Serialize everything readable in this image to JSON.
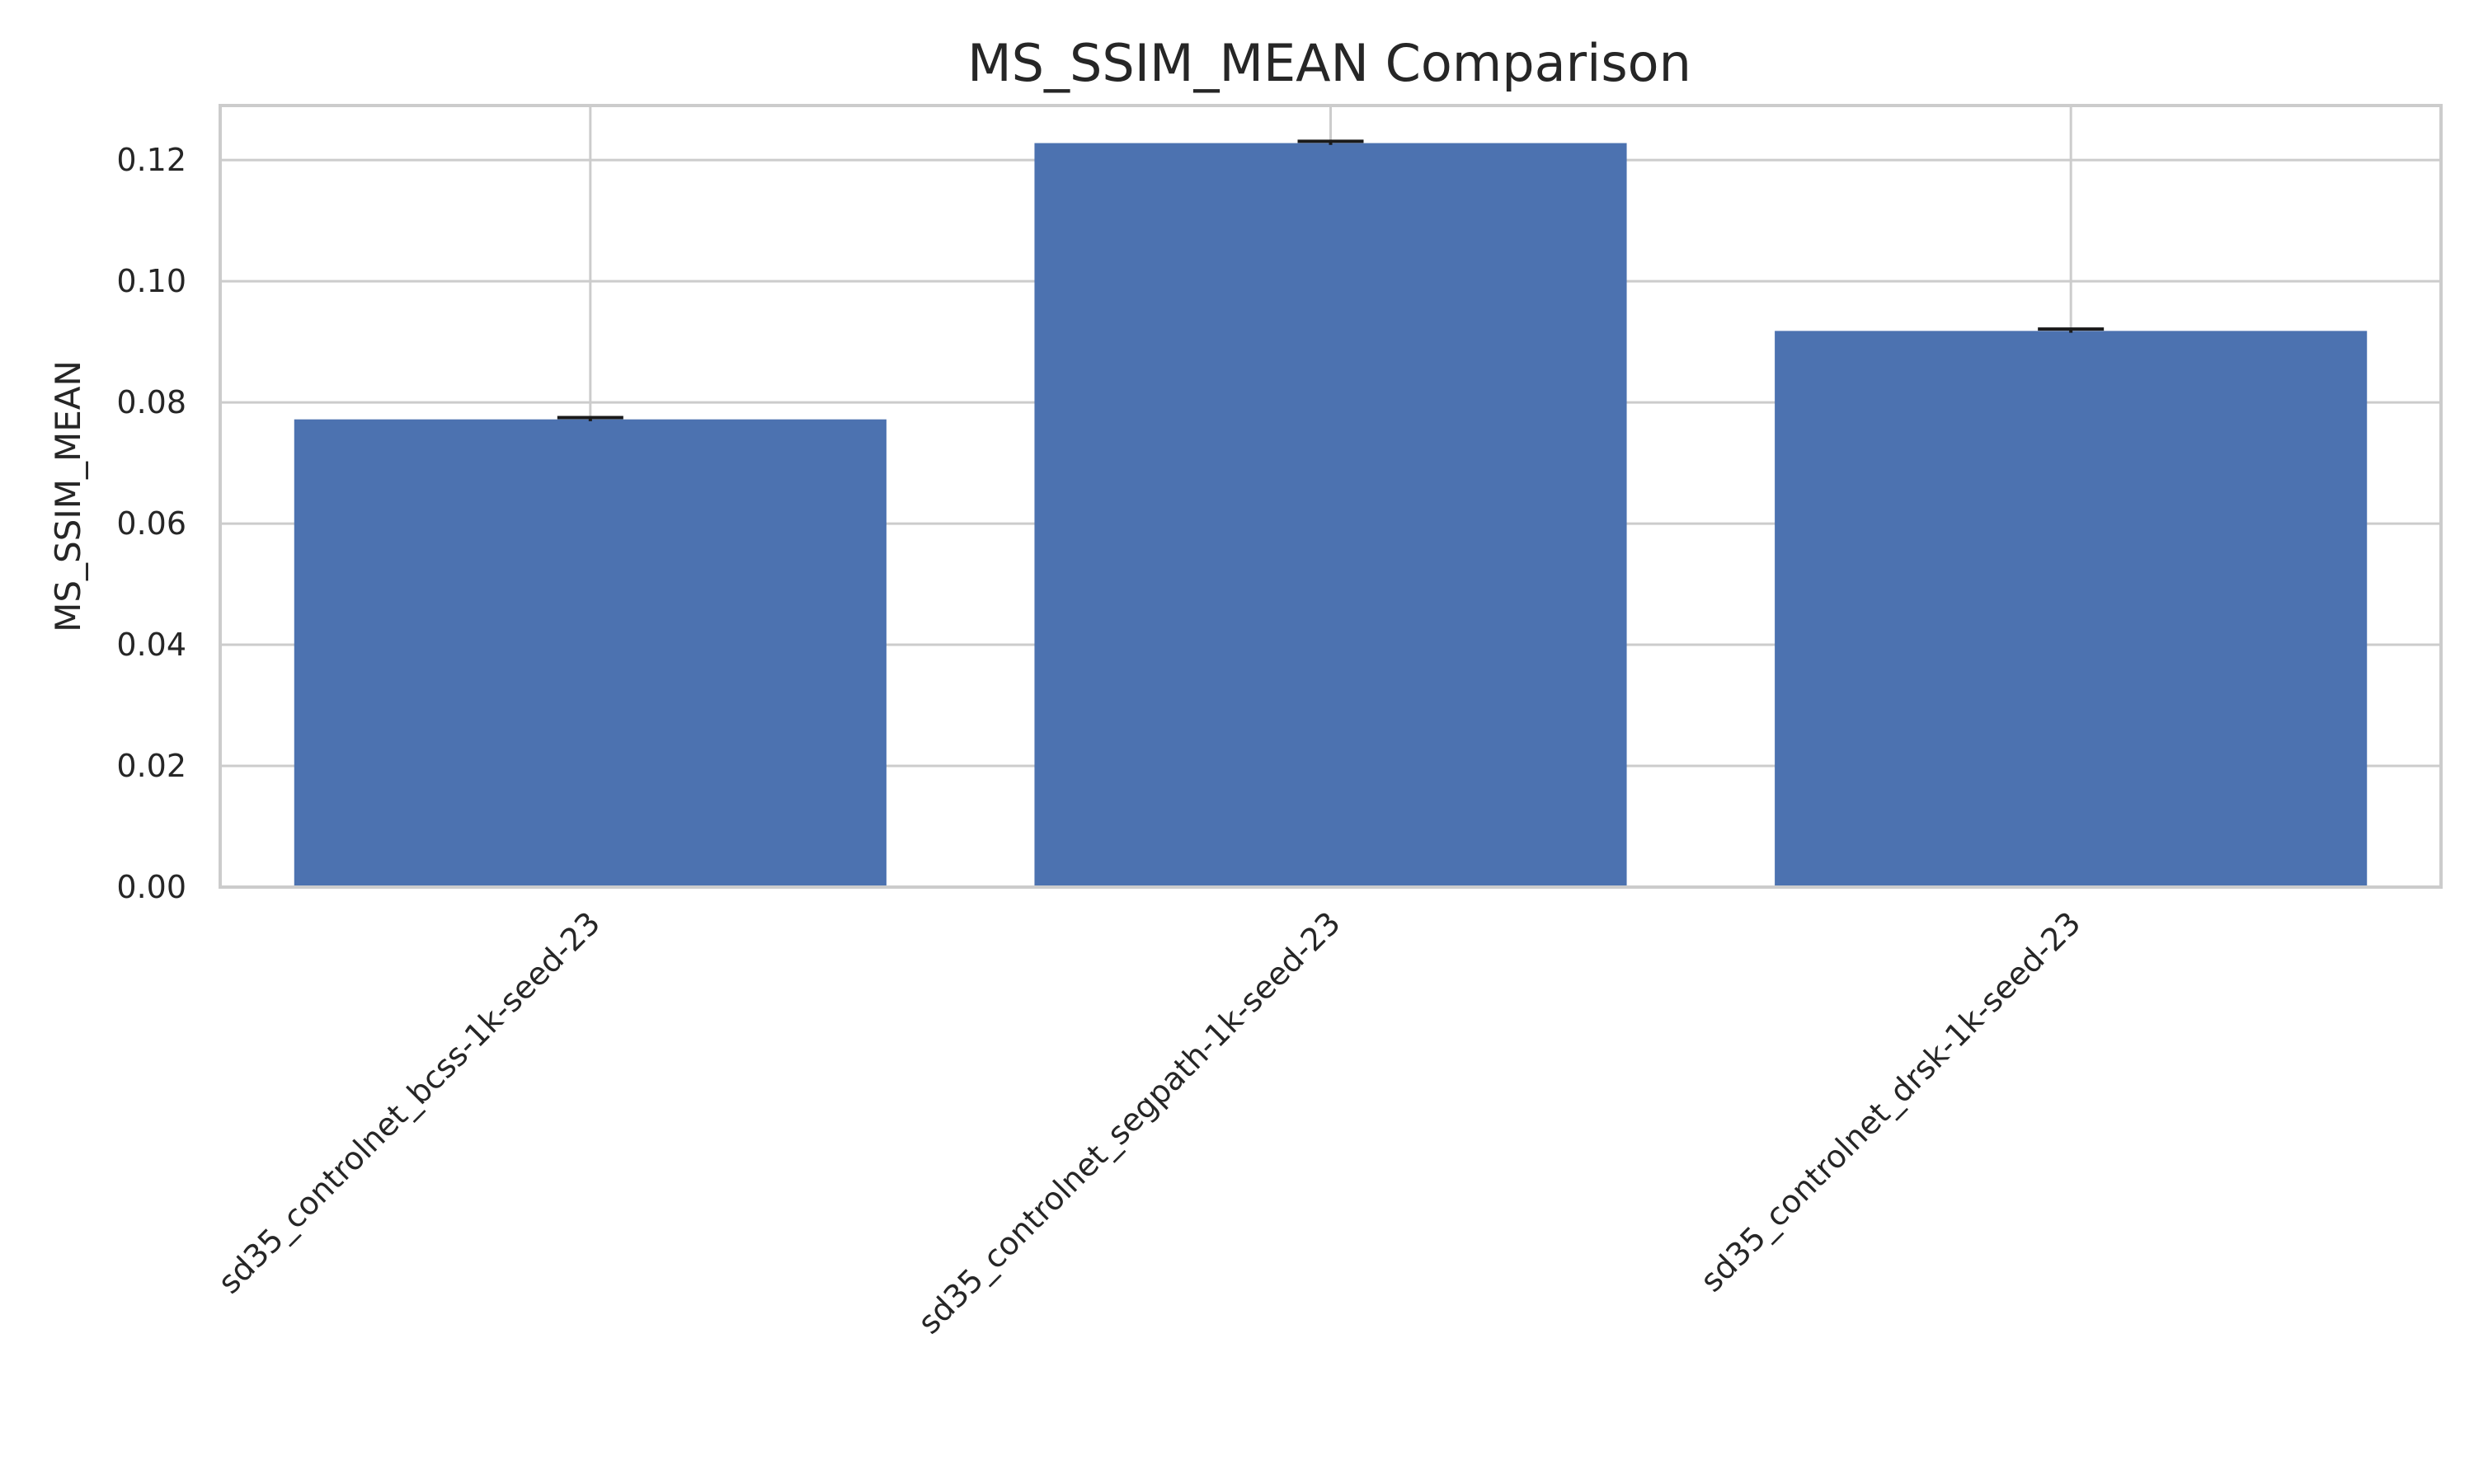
{
  "chart_data": {
    "type": "bar",
    "title": "MS_SSIM_MEAN Comparison",
    "xlabel": "",
    "ylabel": "MS_SSIM_MEAN",
    "categories": [
      "sd35_controlnet_bcss-1k-seed-23",
      "sd35_controlnet_segpath-1k-seed-23",
      "sd35_controlnet_drsk-1k-seed-23"
    ],
    "values": [
      0.0772,
      0.1228,
      0.0918
    ],
    "errors": [
      0.0003,
      0.0003,
      0.0003
    ],
    "ylim": [
      0,
      0.129
    ],
    "yticks": [
      "0.00",
      "0.02",
      "0.04",
      "0.06",
      "0.08",
      "0.10",
      "0.12"
    ],
    "grid": true,
    "bar_color": "#4c72b0",
    "error_color": "#1a1a1a"
  }
}
